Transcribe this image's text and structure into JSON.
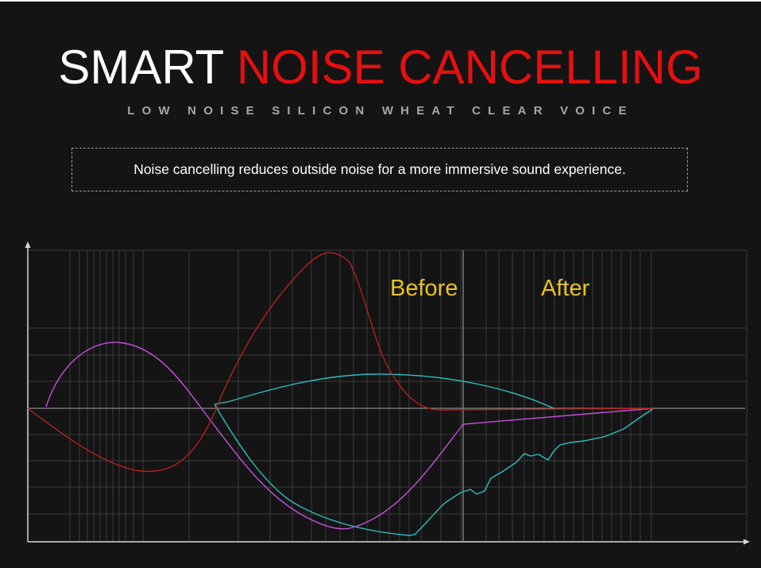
{
  "headline": {
    "part1": "SMART",
    "part2": "NOISE CANCELLING"
  },
  "subheadline": "LOW NOISE SILICON WHEAT CLEAR VOICE",
  "description": "Noise cancelling reduces outside noise for a more immersive sound experience.",
  "chart": {
    "label_before": "Before",
    "label_after": "After"
  },
  "colors": {
    "background": "#141414",
    "accent_red": "#e60f0f",
    "label_yellow": "#e8c21a",
    "curve_red": "#b5201c",
    "curve_magenta": "#c74fdc",
    "curve_cyan": "#2cbfc0"
  }
}
